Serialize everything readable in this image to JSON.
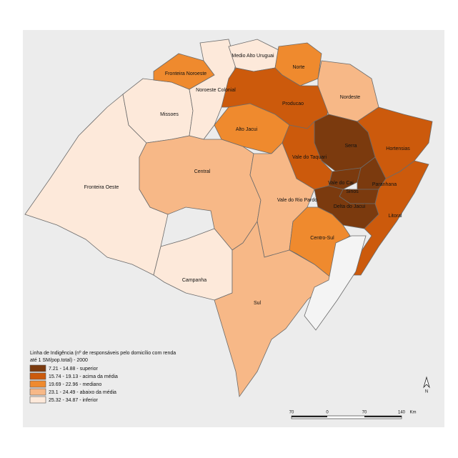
{
  "map": {
    "title_lines": [
      "Linha de Indigência (nº de responsáveis pelo domicílio com renda",
      "até 1 SM/pop.total) - 2000"
    ],
    "legend": [
      {
        "label": "7.21 - 14.88 - superior",
        "color": "#7b3a0e"
      },
      {
        "label": "15.74 - 19.13 - acima da média",
        "color": "#cc5a0c"
      },
      {
        "label": "19.69 - 22.96 - mediano",
        "color": "#ef8a2e"
      },
      {
        "label": "23.1 - 24.49 - abaixo da média",
        "color": "#f7b887"
      },
      {
        "label": "25.32 - 34.87 - inferior",
        "color": "#fde9da"
      }
    ],
    "regions": [
      {
        "name": "Fronteira Oeste",
        "class": 4
      },
      {
        "name": "Missoes",
        "class": 4
      },
      {
        "name": "Fronteira Noroeste",
        "class": 2
      },
      {
        "name": "Noroeste Colonial",
        "class": 4
      },
      {
        "name": "Medio Alto Uruguai",
        "class": 4
      },
      {
        "name": "Norte",
        "class": 2
      },
      {
        "name": "Producao",
        "class": 1
      },
      {
        "name": "Nordeste",
        "class": 3
      },
      {
        "name": "Alto Jacui",
        "class": 2
      },
      {
        "name": "Hortensias",
        "class": 1
      },
      {
        "name": "Serra",
        "class": 0
      },
      {
        "name": "Vale do Taquari",
        "class": 1
      },
      {
        "name": "Central",
        "class": 3
      },
      {
        "name": "Vale do Rio Pardo",
        "class": 3
      },
      {
        "name": "Vale do Cai",
        "class": 0
      },
      {
        "name": "Paranhana",
        "class": 0
      },
      {
        "name": "Sinos",
        "class": 0
      },
      {
        "name": "Delta do Jacui",
        "class": 0
      },
      {
        "name": "Litoral",
        "class": 1
      },
      {
        "name": "Centro-Sul",
        "class": 2
      },
      {
        "name": "Campanha",
        "class": 4
      },
      {
        "name": "Sul",
        "class": 3
      }
    ],
    "scale": {
      "labels": [
        "70",
        "0",
        "70",
        "140"
      ],
      "unit": "Km"
    },
    "north": "N"
  }
}
